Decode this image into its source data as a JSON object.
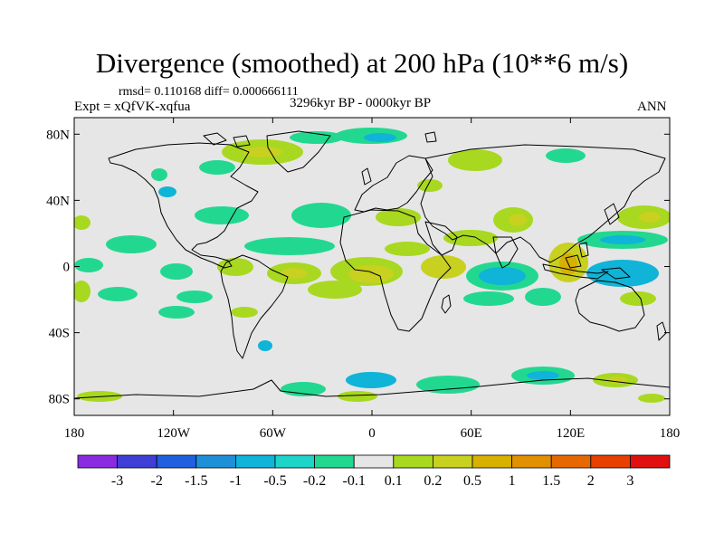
{
  "title": "Divergence (smoothed) at 200 hPa (10**6 m/s)",
  "stats": "rmsd= 0.110168 diff= 0.000666111",
  "experiment": "Expt = xQfVK-xqfua",
  "period": "3296kyr BP - 0000kyr BP",
  "season": "ANN",
  "map": {
    "lat_ticks": [
      "80N",
      "40N",
      "0",
      "40S",
      "80S"
    ],
    "lon_ticks": [
      "180",
      "120W",
      "60W",
      "0",
      "60E",
      "120E",
      "180"
    ],
    "background_color": "#e6e6e6",
    "coastline_color": "#000000"
  },
  "colorbar": {
    "colors": [
      "#8a2be2",
      "#3f3fd8",
      "#1f5fe0",
      "#1e90d8",
      "#10b4d8",
      "#1ed4c8",
      "#22d890",
      "#e6e6e6",
      "#a8d820",
      "#c8d020",
      "#d8b000",
      "#e09000",
      "#e86800",
      "#e84000",
      "#e01010"
    ],
    "labels": [
      "-3",
      "-2",
      "-1.5",
      "-1",
      "-0.5",
      "-0.2",
      "-0.1",
      "0.1",
      "0.2",
      "0.5",
      "1",
      "1.5",
      "2",
      "3"
    ]
  }
}
